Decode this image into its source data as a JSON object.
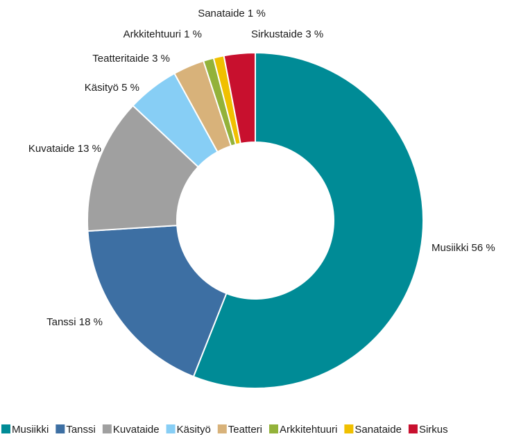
{
  "chart_data": {
    "type": "donut",
    "categories": [
      "Musiikki",
      "Tanssi",
      "Kuvataide",
      "Käsityö",
      "Teatteri",
      "Arkkitehtuuri",
      "Sanataide",
      "Sirkus"
    ],
    "values": [
      56,
      18,
      13,
      5,
      3,
      1,
      1,
      3
    ],
    "value_labels": [
      "Musiikki 56 %",
      "Tanssi 18 %",
      "Kuvataide 13 %",
      "Käsityö 5 %",
      "Teatteritaide 3 %",
      "Arkkitehtuuri 1 %",
      "Sanataide 1 %",
      "Sirkustaide 3 %"
    ],
    "colors": [
      "#008b96",
      "#3d6fa3",
      "#a0a0a0",
      "#87cef5",
      "#d8b27a",
      "#93b23a",
      "#f0c000",
      "#c8102e"
    ],
    "legend": "bottom"
  }
}
